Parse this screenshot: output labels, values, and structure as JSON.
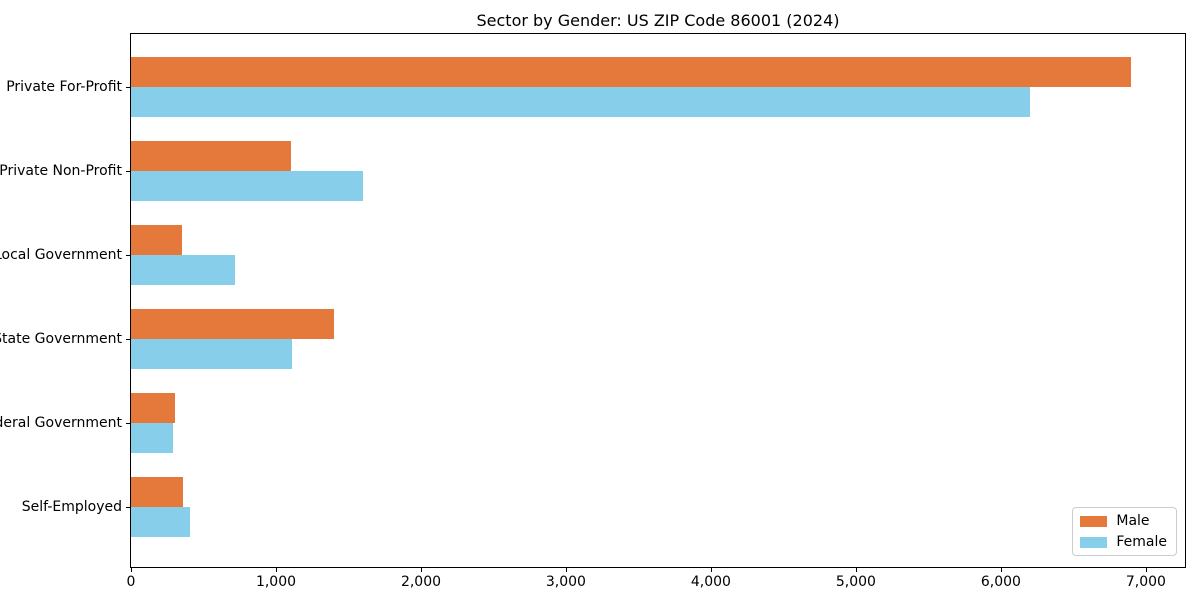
{
  "chart_data": {
    "type": "bar",
    "orientation": "horizontal",
    "title": "Sector by Gender: US ZIP Code 86001 (2024)",
    "categories": [
      "Private For-Profit",
      "Private Non-Profit",
      "Local Government",
      "State Government",
      "Federal Government",
      "Self-Employed"
    ],
    "series": [
      {
        "name": "Male",
        "color": "#e5793c",
        "values": [
          6900,
          1100,
          350,
          1400,
          305,
          360
        ]
      },
      {
        "name": "Female",
        "color": "#87ceeb",
        "values": [
          6200,
          1600,
          720,
          1110,
          290,
          410
        ]
      }
    ],
    "xlabel": "",
    "ylabel": "",
    "xlim": [
      0,
      7270
    ],
    "xticks": [
      0,
      1000,
      2000,
      3000,
      4000,
      5000,
      6000,
      7000
    ],
    "xtick_labels": [
      "0",
      "1,000",
      "2,000",
      "3,000",
      "4,000",
      "5,000",
      "6,000",
      "7,000"
    ],
    "grid": false,
    "legend": {
      "position": "lower right"
    }
  }
}
